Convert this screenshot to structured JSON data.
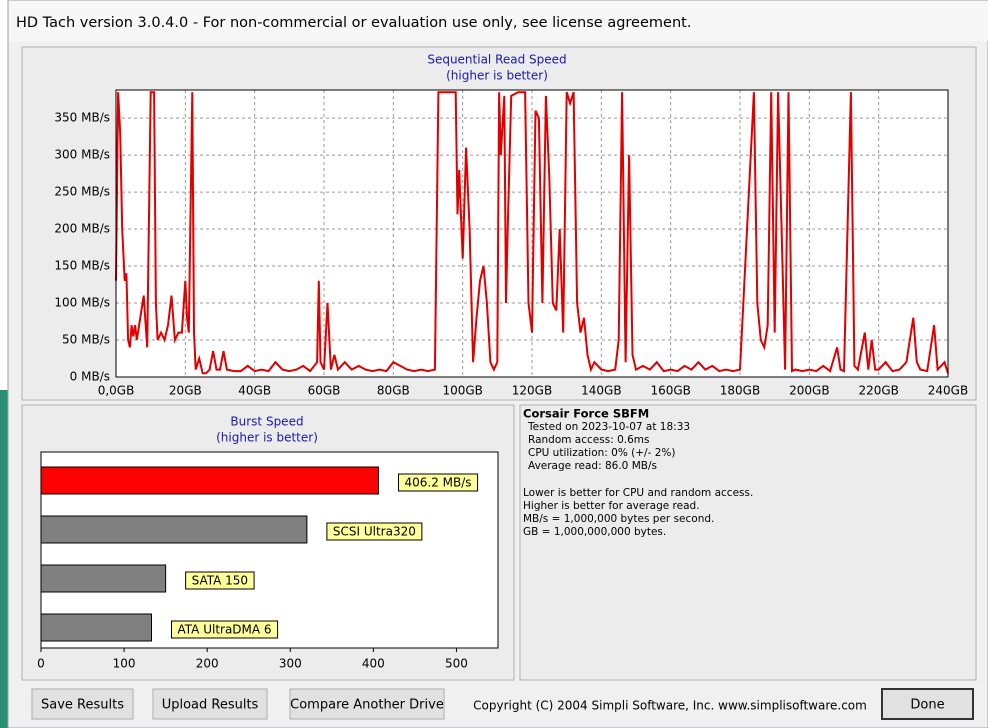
{
  "window": {
    "title": "HD Tach version 3.0.4.0  - For non-commercial or evaluation use only, see license agreement."
  },
  "chart_data": [
    {
      "type": "line",
      "title": "Sequential Read Speed",
      "subtitle": "(higher is better)",
      "color": "#e00000",
      "grid": true,
      "xlim": [
        0,
        240
      ],
      "xticks": [
        {
          "value": 0,
          "label": "0,0GB"
        },
        {
          "value": 20,
          "label": "20GB"
        },
        {
          "value": 40,
          "label": "40GB"
        },
        {
          "value": 60,
          "label": "60GB"
        },
        {
          "value": 80,
          "label": "80GB"
        },
        {
          "value": 100,
          "label": "100GB"
        },
        {
          "value": 120,
          "label": "120GB"
        },
        {
          "value": 140,
          "label": "140GB"
        },
        {
          "value": 160,
          "label": "160GB"
        },
        {
          "value": 180,
          "label": "180GB"
        },
        {
          "value": 200,
          "label": "200GB"
        },
        {
          "value": 220,
          "label": "220GB"
        },
        {
          "value": 240,
          "label": "240GB"
        }
      ],
      "ylim": [
        0,
        388
      ],
      "yticks": [
        {
          "value": 0,
          "label": "0 MB/s"
        },
        {
          "value": 50,
          "label": "50 MB/s"
        },
        {
          "value": 100,
          "label": "100 MB/s"
        },
        {
          "value": 150,
          "label": "150 MB/s"
        },
        {
          "value": 200,
          "label": "200 MB/s"
        },
        {
          "value": 250,
          "label": "250 MB/s"
        },
        {
          "value": 300,
          "label": "300 MB/s"
        },
        {
          "value": 350,
          "label": "350 MB/s"
        }
      ],
      "x": [
        0,
        0.6,
        1.2,
        1.8,
        2.5,
        3,
        3.5,
        4,
        4.5,
        5,
        5.5,
        6,
        7,
        8,
        9,
        10,
        11,
        11.5,
        12,
        13,
        14,
        15,
        16,
        17,
        18,
        19,
        20,
        20.5,
        21,
        22,
        22.5,
        23,
        24,
        25,
        26,
        27,
        28,
        29,
        30,
        31,
        32,
        34,
        36,
        38,
        40,
        42,
        44,
        46,
        48,
        50,
        52,
        54,
        56,
        58,
        58.5,
        59,
        60,
        61,
        62,
        63,
        64,
        66,
        68,
        70,
        72,
        74,
        76,
        78,
        80,
        82,
        84,
        86,
        88,
        90,
        92,
        93,
        96,
        98,
        98.5,
        99,
        99.5,
        100,
        101,
        102,
        103,
        104,
        105,
        106,
        107,
        108,
        109,
        110,
        110.5,
        111,
        112,
        112.5,
        113,
        114,
        116,
        118,
        119,
        120,
        121,
        122,
        123,
        124,
        125,
        126,
        127,
        128,
        129,
        130,
        131,
        132,
        133,
        134,
        135,
        136,
        137,
        138,
        140,
        142,
        144,
        145,
        146,
        147,
        148,
        149,
        150,
        152,
        154,
        156,
        158,
        160,
        162,
        164,
        166,
        168,
        170,
        172,
        174,
        176,
        178,
        180,
        184,
        185,
        186,
        187,
        188,
        189,
        190,
        191,
        192,
        193,
        194,
        195,
        196,
        198,
        200,
        202,
        204,
        206,
        208,
        209,
        210,
        212,
        213,
        214,
        216,
        217,
        218,
        219,
        220,
        222,
        224,
        226,
        228,
        230,
        231,
        232,
        234,
        236,
        237,
        238,
        239,
        240
      ],
      "values": [
        130,
        385,
        330,
        200,
        130,
        140,
        50,
        40,
        70,
        55,
        70,
        50,
        80,
        110,
        40,
        385,
        385,
        100,
        50,
        60,
        50,
        70,
        110,
        50,
        60,
        60,
        130,
        80,
        60,
        385,
        60,
        10,
        25,
        5,
        5,
        10,
        35,
        10,
        10,
        35,
        10,
        8,
        8,
        15,
        8,
        10,
        8,
        20,
        10,
        8,
        10,
        15,
        8,
        20,
        130,
        20,
        10,
        100,
        10,
        30,
        10,
        20,
        10,
        15,
        10,
        8,
        10,
        8,
        20,
        15,
        10,
        8,
        10,
        8,
        10,
        385,
        385,
        385,
        220,
        280,
        220,
        160,
        310,
        200,
        20,
        80,
        130,
        150,
        100,
        20,
        10,
        20,
        385,
        300,
        380,
        100,
        200,
        380,
        385,
        385,
        100,
        60,
        360,
        350,
        100,
        380,
        270,
        100,
        90,
        200,
        60,
        385,
        370,
        385,
        100,
        60,
        80,
        30,
        10,
        20,
        10,
        8,
        10,
        50,
        385,
        20,
        300,
        30,
        10,
        15,
        10,
        20,
        8,
        10,
        8,
        15,
        10,
        20,
        10,
        15,
        8,
        10,
        8,
        10,
        385,
        100,
        50,
        40,
        70,
        385,
        60,
        385,
        200,
        10,
        385,
        8,
        10,
        8,
        10,
        8,
        15,
        8,
        40,
        10,
        8,
        385,
        15,
        10,
        60,
        10,
        50,
        10,
        10,
        20,
        8,
        10,
        20,
        80,
        20,
        10,
        8,
        70,
        10,
        15,
        20,
        5
      ]
    },
    {
      "type": "barh",
      "title": "Burst Speed",
      "subtitle": "(higher is better)",
      "values": [
        406.2,
        320,
        150,
        133
      ],
      "labels": [
        "406.2 MB/s",
        "SCSI Ultra320",
        "SATA 150",
        "ATA UltraDMA 6"
      ],
      "colors": [
        "#ff0000",
        "#808080",
        "#808080",
        "#808080"
      ],
      "xlim": [
        0,
        550
      ],
      "xticks": [
        0,
        100,
        200,
        300,
        400,
        500
      ]
    }
  ],
  "info": {
    "drive": "Corsair Force SBFM",
    "details": [
      "Tested on 2023-10-07 at 18:33",
      "Random access: 0.6ms",
      "CPU utilization: 0% (+/- 2%)",
      "Average read: 86.0 MB/s"
    ],
    "notes": [
      "Lower is better for CPU and random access.",
      "Higher is better for average read.",
      "MB/s = 1,000,000 bytes per second.",
      "GB = 1,000,000,000 bytes."
    ]
  },
  "buttons": [
    "Save Results",
    "Upload Results",
    "Compare Another Drive",
    "Done"
  ],
  "copyright": "Copyright (C) 2004 Simpli Software, Inc. www.simplisoftware.com"
}
